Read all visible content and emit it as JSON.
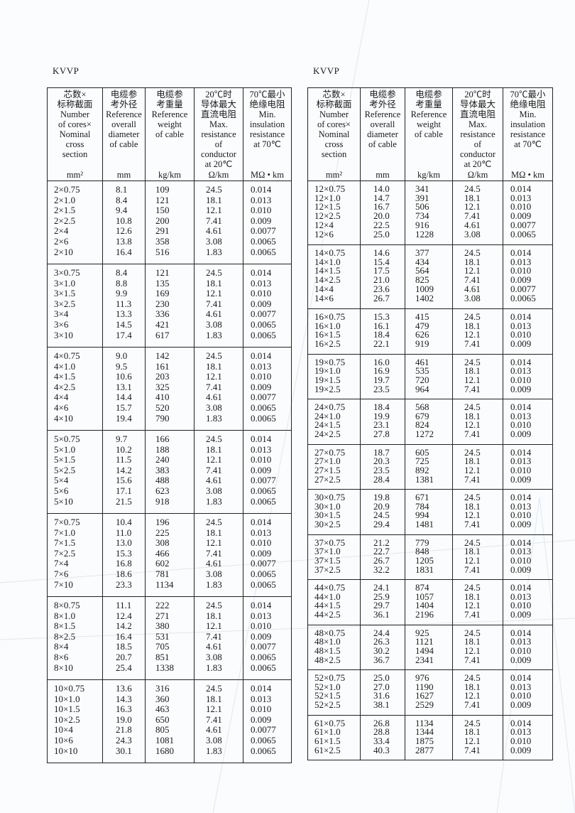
{
  "left": {
    "title": "KVVP",
    "headers": [
      {
        "lines": [
          "芯数×",
          "标称截面",
          "Number",
          "of cores×",
          "Nominal",
          "cross",
          "section"
        ],
        "unit": "mm²"
      },
      {
        "lines": [
          "电缆参",
          "考外径",
          "Reference",
          "overall",
          "diameter",
          "of cable"
        ],
        "unit": "mm"
      },
      {
        "lines": [
          "电缆参",
          "考重量",
          "Reference",
          "weight",
          "of cable"
        ],
        "unit": "kg/km"
      },
      {
        "lines": [
          "20℃时",
          "导体最大",
          "直流电阻",
          "Max.",
          "resistance",
          "of",
          "conductor",
          "at  20℃"
        ],
        "unit": "Ω/km"
      },
      {
        "lines": [
          "70℃最小",
          "绝缘电阻",
          "Min.",
          "insulation",
          "resistance",
          "at 70℃"
        ],
        "unit": "MΩ • km"
      }
    ],
    "groups": [
      [
        [
          "2×0.75",
          "8.1",
          "109",
          "24.5",
          "0.014"
        ],
        [
          "2×1.0",
          "8.4",
          "121",
          "18.1",
          "0.013"
        ],
        [
          "2×1.5",
          "9.4",
          "150",
          "12.1",
          "0.010"
        ],
        [
          "2×2.5",
          "10.8",
          "200",
          "7.41",
          "0.009"
        ],
        [
          "2×4",
          "12.6",
          "291",
          "4.61",
          "0.0077"
        ],
        [
          "2×6",
          "13.8",
          "358",
          "3.08",
          "0.0065"
        ],
        [
          "2×10",
          "16.4",
          "516",
          "1.83",
          "0.0065"
        ]
      ],
      [
        [
          "3×0.75",
          "8.4",
          "121",
          "24.5",
          "0.014"
        ],
        [
          "3×1.0",
          "8.8",
          "135",
          "18.1",
          "0.013"
        ],
        [
          "3×1.5",
          "9.9",
          "169",
          "12.1",
          "0.010"
        ],
        [
          "3×2.5",
          "11.3",
          "230",
          "7.41",
          "0.009"
        ],
        [
          "3×4",
          "13.3",
          "336",
          "4.61",
          "0.0077"
        ],
        [
          "3×6",
          "14.5",
          "421",
          "3.08",
          "0.0065"
        ],
        [
          "3×10",
          "17.4",
          "617",
          "1.83",
          "0.0065"
        ]
      ],
      [
        [
          "4×0.75",
          "9.0",
          "142",
          "24.5",
          "0.014"
        ],
        [
          "4×1.0",
          "9.5",
          "161",
          "18.1",
          "0.013"
        ],
        [
          "4×1.5",
          "10.6",
          "203",
          "12.1",
          "0.010"
        ],
        [
          "4×2.5",
          "13.1",
          "325",
          "7.41",
          "0.009"
        ],
        [
          "4×4",
          "14.4",
          "410",
          "4.61",
          "0.0077"
        ],
        [
          "4×6",
          "15.7",
          "520",
          "3.08",
          "0.0065"
        ],
        [
          "4×10",
          "19.4",
          "790",
          "1.83",
          "0.0065"
        ]
      ],
      [
        [
          "5×0.75",
          "9.7",
          "166",
          "24.5",
          "0.014"
        ],
        [
          "5×1.0",
          "10.2",
          "188",
          "18.1",
          "0.013"
        ],
        [
          "5×1.5",
          "11.5",
          "240",
          "12.1",
          "0.010"
        ],
        [
          "5×2.5",
          "14.2",
          "383",
          "7.41",
          "0.009"
        ],
        [
          "5×4",
          "15.6",
          "488",
          "4.61",
          "0.0077"
        ],
        [
          "5×6",
          "17.1",
          "623",
          "3.08",
          "0.0065"
        ],
        [
          "5×10",
          "21.5",
          "918",
          "1.83",
          "0.0065"
        ]
      ],
      [
        [
          "7×0.75",
          "10.4",
          "196",
          "24.5",
          "0.014"
        ],
        [
          "7×1.0",
          "11.0",
          "225",
          "18.1",
          "0.013"
        ],
        [
          "7×1.5",
          "13.0",
          "308",
          "12.1",
          "0.010"
        ],
        [
          "7×2.5",
          "15.3",
          "466",
          "7.41",
          "0.009"
        ],
        [
          "7×4",
          "16.8",
          "602",
          "4.61",
          "0.0077"
        ],
        [
          "7×6",
          "18.6",
          "781",
          "3.08",
          "0.0065"
        ],
        [
          "7×10",
          "23.3",
          "1134",
          "1.83",
          "0.0065"
        ]
      ],
      [
        [
          "8×0.75",
          "11.1",
          "222",
          "24.5",
          "0.014"
        ],
        [
          "8×1.0",
          "12.4",
          "271",
          "18.1",
          "0.013"
        ],
        [
          "8×1.5",
          "14.2",
          "380",
          "12.1",
          "0.010"
        ],
        [
          "8×2.5",
          "16.4",
          "531",
          "7.41",
          "0.009"
        ],
        [
          "8×4",
          "18.5",
          "705",
          "4.61",
          "0.0077"
        ],
        [
          "8×6",
          "20.7",
          "851",
          "3.08",
          "0.0065"
        ],
        [
          "8×10",
          "25.4",
          "1338",
          "1.83",
          "0.0065"
        ]
      ],
      [
        [
          "10×0.75",
          "13.6",
          "316",
          "24.5",
          "0.014"
        ],
        [
          "10×1.0",
          "14.3",
          "360",
          "18.1",
          "0.013"
        ],
        [
          "10×1.5",
          "16.3",
          "463",
          "12.1",
          "0.010"
        ],
        [
          "10×2.5",
          "19.0",
          "650",
          "7.41",
          "0.009"
        ],
        [
          "10×4",
          "21.8",
          "805",
          "4.61",
          "0.0077"
        ],
        [
          "10×6",
          "24.3",
          "1081",
          "3.08",
          "0.0065"
        ],
        [
          "10×10",
          "30.1",
          "1680",
          "1.83",
          "0.0065"
        ]
      ]
    ]
  },
  "right": {
    "title": "KVVP",
    "headers": [
      {
        "lines": [
          "芯数×",
          "标称截面",
          "Number",
          "of cores×",
          "Nominal",
          "cross",
          "section"
        ],
        "unit": "mm²"
      },
      {
        "lines": [
          "电缆参",
          "考外径",
          "Reference",
          "overall",
          "diameter",
          "of cable"
        ],
        "unit": "mm"
      },
      {
        "lines": [
          "电缆参",
          "考重量",
          "Reference",
          "weight",
          "of cable"
        ],
        "unit": "kg/km"
      },
      {
        "lines": [
          "20℃时",
          "导体最大",
          "直流电阻",
          "Max.",
          "resistance",
          "of",
          "conductor",
          "at  20℃"
        ],
        "unit": "Ω/km"
      },
      {
        "lines": [
          "70℃最小",
          "绝缘电阻",
          "Min.",
          "insulation",
          "resistance",
          "at 70℃"
        ],
        "unit": "MΩ • km"
      }
    ],
    "groups": [
      [
        [
          "12×0.75",
          "14.0",
          "341",
          "24.5",
          "0.014"
        ],
        [
          "12×1.0",
          "14.7",
          "391",
          "18.1",
          "0.013"
        ],
        [
          "12×1.5",
          "16.7",
          "506",
          "12.1",
          "0.010"
        ],
        [
          "12×2.5",
          "20.0",
          "734",
          "7.41",
          "0.009"
        ],
        [
          "12×4",
          "22.5",
          "916",
          "4.61",
          "0.0077"
        ],
        [
          "12×6",
          "25.0",
          "1228",
          "3.08",
          "0.0065"
        ]
      ],
      [
        [
          "14×0.75",
          "14.6",
          "377",
          "24.5",
          "0.014"
        ],
        [
          "14×1.0",
          "15.4",
          "434",
          "18.1",
          "0.013"
        ],
        [
          "14×1.5",
          "17.5",
          "564",
          "12.1",
          "0.010"
        ],
        [
          "14×2.5",
          "21.0",
          "825",
          "7.41",
          "0.009"
        ],
        [
          "14×4",
          "23.6",
          "1009",
          "4.61",
          "0.0077"
        ],
        [
          "14×6",
          "26.7",
          "1402",
          "3.08",
          "0.0065"
        ]
      ],
      [
        [
          "16×0.75",
          "15.3",
          "415",
          "24.5",
          "0.014"
        ],
        [
          "16×1.0",
          "16.1",
          "479",
          "18.1",
          "0.013"
        ],
        [
          "16×1.5",
          "18.4",
          "626",
          "12.1",
          "0.010"
        ],
        [
          "16×2.5",
          "22.1",
          "919",
          "7.41",
          "0.009"
        ]
      ],
      [
        [
          "19×0.75",
          "16.0",
          "461",
          "24.5",
          "0.014"
        ],
        [
          "19×1.0",
          "16.9",
          "535",
          "18.1",
          "0.013"
        ],
        [
          "19×1.5",
          "19.7",
          "720",
          "12.1",
          "0.010"
        ],
        [
          "19×2.5",
          "23.5",
          "964",
          "7.41",
          "0.009"
        ]
      ],
      [
        [
          "24×0.75",
          "18.4",
          "568",
          "24.5",
          "0.014"
        ],
        [
          "24×1.0",
          "19.9",
          "679",
          "18.1",
          "0.013"
        ],
        [
          "24×1.5",
          "23.1",
          "824",
          "12.1",
          "0.010"
        ],
        [
          "24×2.5",
          "27.8",
          "1272",
          "7.41",
          "0.009"
        ]
      ],
      [
        [
          "27×0.75",
          "18.7",
          "605",
          "24.5",
          "0.014"
        ],
        [
          "27×1.0",
          "20.3",
          "725",
          "18.1",
          "0.013"
        ],
        [
          "27×1.5",
          "23.5",
          "892",
          "12.1",
          "0.010"
        ],
        [
          "27×2.5",
          "28.4",
          "1381",
          "7.41",
          "0.009"
        ]
      ],
      [
        [
          "30×0.75",
          "19.8",
          "671",
          "24.5",
          "0.014"
        ],
        [
          "30×1.0",
          "20.9",
          "784",
          "18.1",
          "0.013"
        ],
        [
          "30×1.5",
          "24.5",
          "994",
          "12.1",
          "0.010"
        ],
        [
          "30×2.5",
          "29.4",
          "1481",
          "7.41",
          "0.009"
        ]
      ],
      [
        [
          "37×0.75",
          "21.2",
          "779",
          "24.5",
          "0.014"
        ],
        [
          "37×1.0",
          "22.7",
          "848",
          "18.1",
          "0.013"
        ],
        [
          "37×1.5",
          "26.7",
          "1205",
          "12.1",
          "0.010"
        ],
        [
          "37×2.5",
          "32.2",
          "1831",
          "7.41",
          "0.009"
        ]
      ],
      [
        [
          "44×0.75",
          "24.1",
          "874",
          "24.5",
          "0.014"
        ],
        [
          "44×1.0",
          "25.9",
          "1057",
          "18.1",
          "0.013"
        ],
        [
          "44×1.5",
          "29.7",
          "1404",
          "12.1",
          "0.010"
        ],
        [
          "44×2.5",
          "36.1",
          "2196",
          "7.41",
          "0.009"
        ]
      ],
      [
        [
          "48×0.75",
          "24.4",
          "925",
          "24.5",
          "0.014"
        ],
        [
          "48×1.0",
          "26.3",
          "1121",
          "18.1",
          "0.013"
        ],
        [
          "48×1.5",
          "30.2",
          "1494",
          "12.1",
          "0.010"
        ],
        [
          "48×2.5",
          "36.7",
          "2341",
          "7.41",
          "0.009"
        ]
      ],
      [
        [
          "52×0.75",
          "25.0",
          "976",
          "24.5",
          "0.014"
        ],
        [
          "52×1.0",
          "27.0",
          "1190",
          "18.1",
          "0.013"
        ],
        [
          "52×1.5",
          "31.6",
          "1627",
          "12.1",
          "0.010"
        ],
        [
          "52×2.5",
          "38.1",
          "2529",
          "7.41",
          "0.009"
        ]
      ],
      [
        [
          "61×0.75",
          "26.8",
          "1134",
          "24.5",
          "0.014"
        ],
        [
          "61×1.0",
          "28.8",
          "1344",
          "18.1",
          "0.013"
        ],
        [
          "61×1.5",
          "33.4",
          "1875",
          "12.1",
          "0.010"
        ],
        [
          "61×2.5",
          "40.3",
          "2877",
          "7.41",
          "0.009"
        ]
      ]
    ]
  }
}
